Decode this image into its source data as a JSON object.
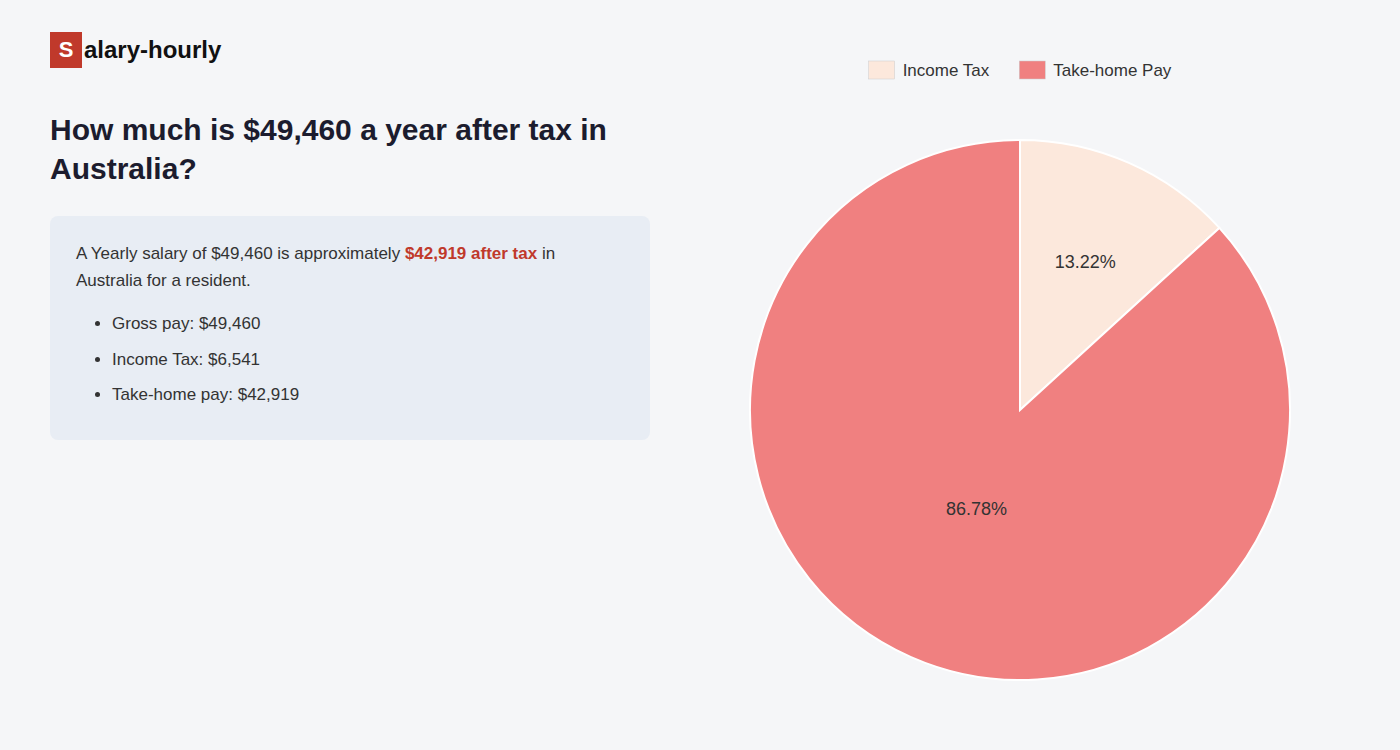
{
  "chart_data": {
    "type": "pie",
    "title": "How much is $49,460 a year after tax in Australia?",
    "annotations": [
      "S",
      "alary-hourly",
      "A Yearly salary of $49,460 is approximately ",
      "$42,919 after tax",
      " in",
      "Australia for a resident.",
      "Gross pay: $49,460",
      "Income Tax: $6,541",
      "Take-home pay: $42,919"
    ],
    "categories": [
      "Income Tax",
      "Take-home Pay"
    ],
    "values": [
      13.22,
      86.78
    ],
    "value_labels": [
      "13.22%",
      "86.78%"
    ],
    "colors": [
      "#fce8dc",
      "#f08080"
    ],
    "data_labels": true,
    "legend": "top"
  }
}
